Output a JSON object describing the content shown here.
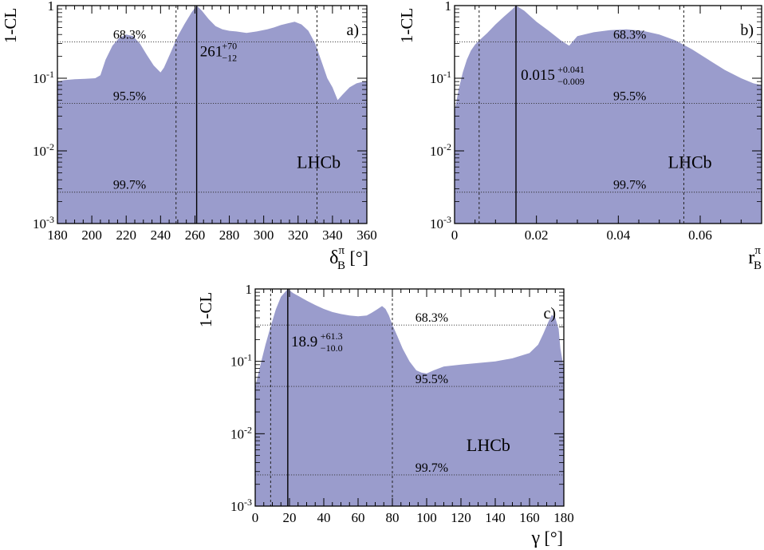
{
  "colors": {
    "fill": "#9a9ccc",
    "axis": "#000000"
  },
  "chart_data": [
    {
      "type": "area",
      "panel_label": "a)",
      "brand": "LHCb",
      "ylabel": "1-CL",
      "xlabel_main": "δ",
      "xlabel_sub": "B",
      "xlabel_sup": "π",
      "xlabel_unit": " [°]",
      "yscale": "log",
      "xlim": [
        180,
        360
      ],
      "ylim": [
        0.001,
        1
      ],
      "xticks": [
        "180",
        "200",
        "220",
        "240",
        "260",
        "280",
        "300",
        "320",
        "340",
        "360"
      ],
      "xtick_values": [
        180,
        200,
        220,
        240,
        260,
        280,
        300,
        320,
        340,
        360
      ],
      "cl_lines": [
        {
          "label": "68.3%",
          "value": 0.317,
          "x": 222
        },
        {
          "label": "95.5%",
          "value": 0.045,
          "x": 222
        },
        {
          "label": "99.7%",
          "value": 0.0027,
          "x": 222
        }
      ],
      "interval": [
        249,
        331
      ],
      "best_fit": 261,
      "result_value": "261",
      "result_plus": "+70",
      "result_minus": "−12",
      "result_pos": [
        262,
        0.2
      ],
      "brand_pos": [
        332,
        0.0058
      ],
      "x": [
        180,
        184,
        190,
        196,
        202,
        205,
        208,
        212,
        216,
        220,
        224,
        228,
        232,
        236,
        240,
        242,
        246,
        250,
        254,
        258,
        261,
        264,
        268,
        272,
        276,
        280,
        284,
        290,
        296,
        302,
        306,
        310,
        314,
        318,
        322,
        326,
        330,
        334,
        337,
        340,
        343,
        346,
        350,
        354,
        358,
        360
      ],
      "y": [
        0.09,
        0.094,
        0.097,
        0.098,
        0.1,
        0.11,
        0.18,
        0.28,
        0.36,
        0.4,
        0.38,
        0.3,
        0.21,
        0.15,
        0.12,
        0.14,
        0.23,
        0.38,
        0.56,
        0.8,
        1.0,
        0.85,
        0.65,
        0.52,
        0.47,
        0.45,
        0.44,
        0.42,
        0.44,
        0.47,
        0.5,
        0.54,
        0.57,
        0.6,
        0.55,
        0.45,
        0.3,
        0.16,
        0.1,
        0.075,
        0.05,
        0.06,
        0.075,
        0.085,
        0.09,
        0.09
      ]
    },
    {
      "type": "area",
      "panel_label": "b)",
      "brand": "LHCb",
      "ylabel": "1-CL",
      "xlabel_main": "r",
      "xlabel_sub": "B",
      "xlabel_sup": "π",
      "xlabel_unit": "",
      "yscale": "log",
      "xlim": [
        0,
        0.075
      ],
      "ylim": [
        0.001,
        1
      ],
      "xticks": [
        "0",
        "0.02",
        "0.04",
        "0.06"
      ],
      "xtick_values": [
        0,
        0.02,
        0.04,
        0.06
      ],
      "cl_lines": [
        {
          "label": "68.3%",
          "value": 0.317,
          "x": 0.0428
        },
        {
          "label": "95.5%",
          "value": 0.045,
          "x": 0.0428
        },
        {
          "label": "99.7%",
          "value": 0.0027,
          "x": 0.0428
        }
      ],
      "interval": [
        0.006,
        0.056
      ],
      "best_fit": 0.015,
      "result_value": "0.015",
      "result_plus": "+0.041",
      "result_minus": "−0.009",
      "result_pos": [
        0.0158,
        0.095
      ],
      "brand_pos": [
        0.0575,
        0.0058
      ],
      "x": [
        0,
        0.001,
        0.002,
        0.003,
        0.004,
        0.005,
        0.006,
        0.008,
        0.01,
        0.012,
        0.014,
        0.015,
        0.017,
        0.02,
        0.023,
        0.026,
        0.028,
        0.03,
        0.034,
        0.038,
        0.042,
        0.046,
        0.05,
        0.054,
        0.058,
        0.062,
        0.066,
        0.07,
        0.073,
        0.075
      ],
      "y": [
        0.035,
        0.07,
        0.12,
        0.18,
        0.24,
        0.29,
        0.33,
        0.42,
        0.55,
        0.7,
        0.88,
        1.0,
        0.85,
        0.6,
        0.45,
        0.33,
        0.28,
        0.38,
        0.43,
        0.46,
        0.47,
        0.45,
        0.4,
        0.33,
        0.25,
        0.18,
        0.13,
        0.1,
        0.085,
        0.08
      ]
    },
    {
      "type": "area",
      "panel_label": "c)",
      "brand": "LHCb",
      "ylabel": "1-CL",
      "xlabel_main": "γ",
      "xlabel_sub": "",
      "xlabel_sup": "",
      "xlabel_unit": " [°]",
      "yscale": "log",
      "xlim": [
        0,
        180
      ],
      "ylim": [
        0.001,
        1
      ],
      "xticks": [
        "0",
        "20",
        "40",
        "60",
        "80",
        "100",
        "120",
        "140",
        "160",
        "180"
      ],
      "xtick_values": [
        0,
        20,
        40,
        60,
        80,
        100,
        120,
        140,
        160,
        180
      ],
      "cl_lines": [
        {
          "label": "68.3%",
          "value": 0.317,
          "x": 103
        },
        {
          "label": "95.5%",
          "value": 0.045,
          "x": 103
        },
        {
          "label": "99.7%",
          "value": 0.0027,
          "x": 103
        }
      ],
      "interval": [
        9,
        80
      ],
      "best_fit": 19,
      "result_value": "18.9",
      "result_plus": "+61.3",
      "result_minus": "−10.0",
      "result_pos": [
        20,
        0.16
      ],
      "brand_pos": [
        136,
        0.0058
      ],
      "x": [
        0,
        2,
        4,
        6,
        8,
        10,
        12,
        15,
        19,
        22,
        26,
        30,
        35,
        40,
        45,
        50,
        55,
        60,
        65,
        68,
        71,
        74,
        76,
        78,
        80,
        83,
        86,
        90,
        94,
        97,
        100,
        104,
        110,
        120,
        130,
        140,
        150,
        160,
        165,
        168,
        171,
        173,
        175,
        177,
        178,
        180
      ],
      "y": [
        0.045,
        0.07,
        0.11,
        0.17,
        0.25,
        0.36,
        0.52,
        0.78,
        1.0,
        0.88,
        0.78,
        0.69,
        0.6,
        0.53,
        0.48,
        0.45,
        0.43,
        0.42,
        0.43,
        0.47,
        0.52,
        0.58,
        0.53,
        0.43,
        0.32,
        0.22,
        0.15,
        0.1,
        0.075,
        0.07,
        0.068,
        0.075,
        0.085,
        0.09,
        0.095,
        0.1,
        0.11,
        0.13,
        0.17,
        0.24,
        0.35,
        0.44,
        0.4,
        0.28,
        0.15,
        0.08
      ]
    }
  ]
}
